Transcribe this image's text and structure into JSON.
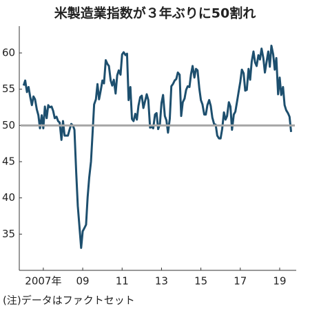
{
  "chart_data": {
    "type": "line",
    "title": "米製造業指数が３年ぶりに50割れ",
    "note": "(注)データはファクトセット",
    "color": "#1d4f6e",
    "reference_line": 50,
    "reference_color": "#a6a6a6",
    "xlim": [
      2005.78,
      2019.84
    ],
    "xticks": [
      {
        "value": 2007,
        "label": "2007年"
      },
      {
        "value": 2009,
        "label": "09"
      },
      {
        "value": 2011,
        "label": "11"
      },
      {
        "value": 2013,
        "label": "13"
      },
      {
        "value": 2015,
        "label": "15"
      },
      {
        "value": 2017,
        "label": "17"
      },
      {
        "value": 2019,
        "label": "19"
      }
    ],
    "ylim": [
      30,
      63.7
    ],
    "yticks": [
      35,
      40,
      45,
      50,
      55,
      60
    ],
    "x": [
      2006.0,
      2006.08,
      2006.17,
      2006.25,
      2006.33,
      2006.42,
      2006.5,
      2006.58,
      2006.67,
      2006.75,
      2006.83,
      2006.92,
      2007.0,
      2007.08,
      2007.17,
      2007.25,
      2007.33,
      2007.42,
      2007.5,
      2007.58,
      2007.67,
      2007.75,
      2007.83,
      2007.92,
      2008.0,
      2008.08,
      2008.17,
      2008.25,
      2008.33,
      2008.42,
      2008.5,
      2008.58,
      2008.67,
      2008.75,
      2008.83,
      2008.92,
      2009.0,
      2009.08,
      2009.17,
      2009.25,
      2009.33,
      2009.42,
      2009.5,
      2009.58,
      2009.67,
      2009.75,
      2009.83,
      2009.92,
      2010.0,
      2010.08,
      2010.17,
      2010.25,
      2010.33,
      2010.42,
      2010.5,
      2010.58,
      2010.67,
      2010.75,
      2010.83,
      2010.92,
      2011.0,
      2011.08,
      2011.17,
      2011.25,
      2011.33,
      2011.42,
      2011.5,
      2011.58,
      2011.67,
      2011.75,
      2011.83,
      2011.92,
      2012.0,
      2012.08,
      2012.17,
      2012.25,
      2012.33,
      2012.42,
      2012.5,
      2012.58,
      2012.67,
      2012.75,
      2012.83,
      2012.92,
      2013.0,
      2013.08,
      2013.17,
      2013.25,
      2013.33,
      2013.42,
      2013.5,
      2013.58,
      2013.67,
      2013.75,
      2013.83,
      2013.92,
      2014.0,
      2014.08,
      2014.17,
      2014.25,
      2014.33,
      2014.42,
      2014.5,
      2014.58,
      2014.67,
      2014.75,
      2014.83,
      2014.92,
      2015.0,
      2015.08,
      2015.17,
      2015.25,
      2015.33,
      2015.42,
      2015.5,
      2015.58,
      2015.67,
      2015.75,
      2015.83,
      2015.92,
      2016.0,
      2016.08,
      2016.17,
      2016.25,
      2016.33,
      2016.42,
      2016.5,
      2016.58,
      2016.67,
      2016.75,
      2016.83,
      2016.92,
      2017.0,
      2017.08,
      2017.17,
      2017.25,
      2017.33,
      2017.42,
      2017.5,
      2017.58,
      2017.67,
      2017.75,
      2017.83,
      2017.92,
      2018.0,
      2018.08,
      2018.17,
      2018.25,
      2018.33,
      2018.42,
      2018.5,
      2018.58,
      2018.67,
      2018.75,
      2018.83,
      2018.92,
      2019.0,
      2019.08,
      2019.17,
      2019.25,
      2019.33,
      2019.42,
      2019.5,
      2019.58
    ],
    "values": [
      55.5,
      56.2,
      54.6,
      55.3,
      54.0,
      52.8,
      54.0,
      53.6,
      52.2,
      51.4,
      49.6,
      51.4,
      49.6,
      52.6,
      51.0,
      52.8,
      52.5,
      52.6,
      52.0,
      51.0,
      51.2,
      50.6,
      50.4,
      48.0,
      50.6,
      48.6,
      48.6,
      48.6,
      49.4,
      50.2,
      50.0,
      49.4,
      43.5,
      38.9,
      36.2,
      33.1,
      35.4,
      35.8,
      36.3,
      40.1,
      42.8,
      45.0,
      48.9,
      52.9,
      53.6,
      55.7,
      53.6,
      54.9,
      56.2,
      55.8,
      59.0,
      58.5,
      58.2,
      56.2,
      55.5,
      56.3,
      54.4,
      56.9,
      57.6,
      57.0,
      59.8,
      60.1,
      59.7,
      59.9,
      53.5,
      55.3,
      50.9,
      50.6,
      51.6,
      50.8,
      52.7,
      53.9,
      54.1,
      52.4,
      53.4,
      54.3,
      53.5,
      49.7,
      49.8,
      49.6,
      51.5,
      51.7,
      49.5,
      50.2,
      53.1,
      54.2,
      51.3,
      50.7,
      49.0,
      50.9,
      55.4,
      55.7,
      56.2,
      56.4,
      57.3,
      57.0,
      51.3,
      53.2,
      53.7,
      54.9,
      55.4,
      55.3,
      57.1,
      58.2,
      56.6,
      57.8,
      57.6,
      55.1,
      53.5,
      52.9,
      51.5,
      51.5,
      52.8,
      53.5,
      52.7,
      51.1,
      50.2,
      50.1,
      48.6,
      48.2,
      48.2,
      49.5,
      51.8,
      50.8,
      51.3,
      53.2,
      52.6,
      49.4,
      51.5,
      51.9,
      53.2,
      54.7,
      56.0,
      57.7,
      57.2,
      54.8,
      54.9,
      57.8,
      56.3,
      58.8,
      60.2,
      58.7,
      58.2,
      59.7,
      59.1,
      60.6,
      59.3,
      57.3,
      58.7,
      60.2,
      58.1,
      61.0,
      59.8,
      57.7,
      59.3,
      54.3,
      56.6,
      54.2,
      55.3,
      52.8,
      52.1,
      51.7,
      51.2,
      49.1
    ]
  }
}
